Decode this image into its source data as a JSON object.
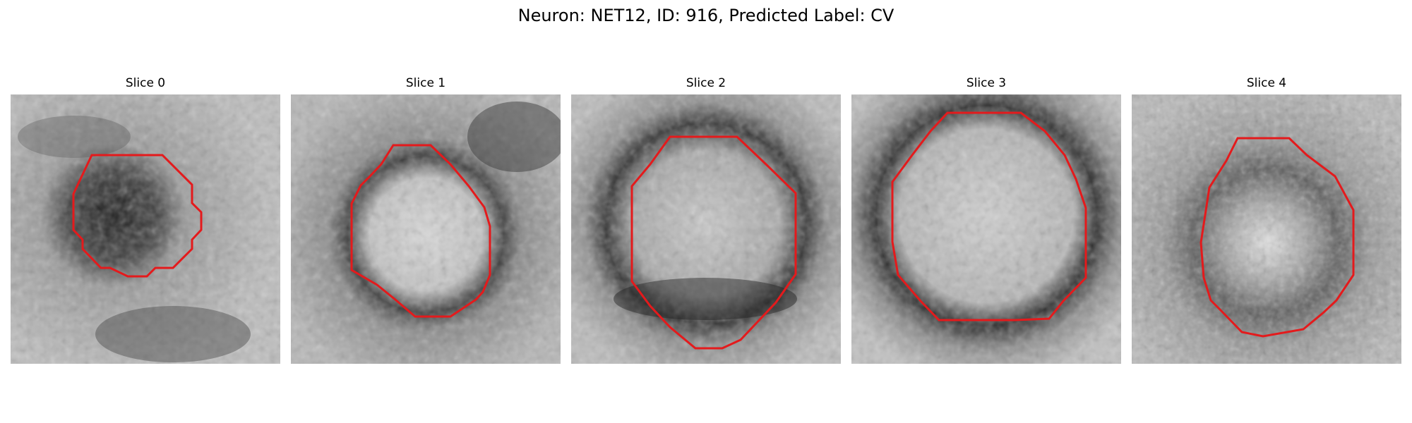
{
  "figure": {
    "title": "Neuron: NET12, ID: 916, Predicted Label: CV"
  },
  "panels": [
    {
      "title": "Slice 0",
      "image": "grayscale microscopy crop with dark compact vesicle blob centered left",
      "overlay_color": "#e41a1c"
    },
    {
      "title": "Slice 1",
      "image": "grayscale microscopy crop with bright vesicle core and dark ring",
      "overlay_color": "#e41a1c"
    },
    {
      "title": "Slice 2",
      "image": "grayscale microscopy crop with large bright vesicle and dark lower rim",
      "overlay_color": "#e41a1c"
    },
    {
      "title": "Slice 3",
      "image": "grayscale microscopy crop with bright vesicle and dark surrounding membrane",
      "overlay_color": "#e41a1c"
    },
    {
      "title": "Slice 4",
      "image": "grayscale microscopy crop with speckled vesicle and bright center",
      "overlay_color": "#e41a1c"
    }
  ]
}
